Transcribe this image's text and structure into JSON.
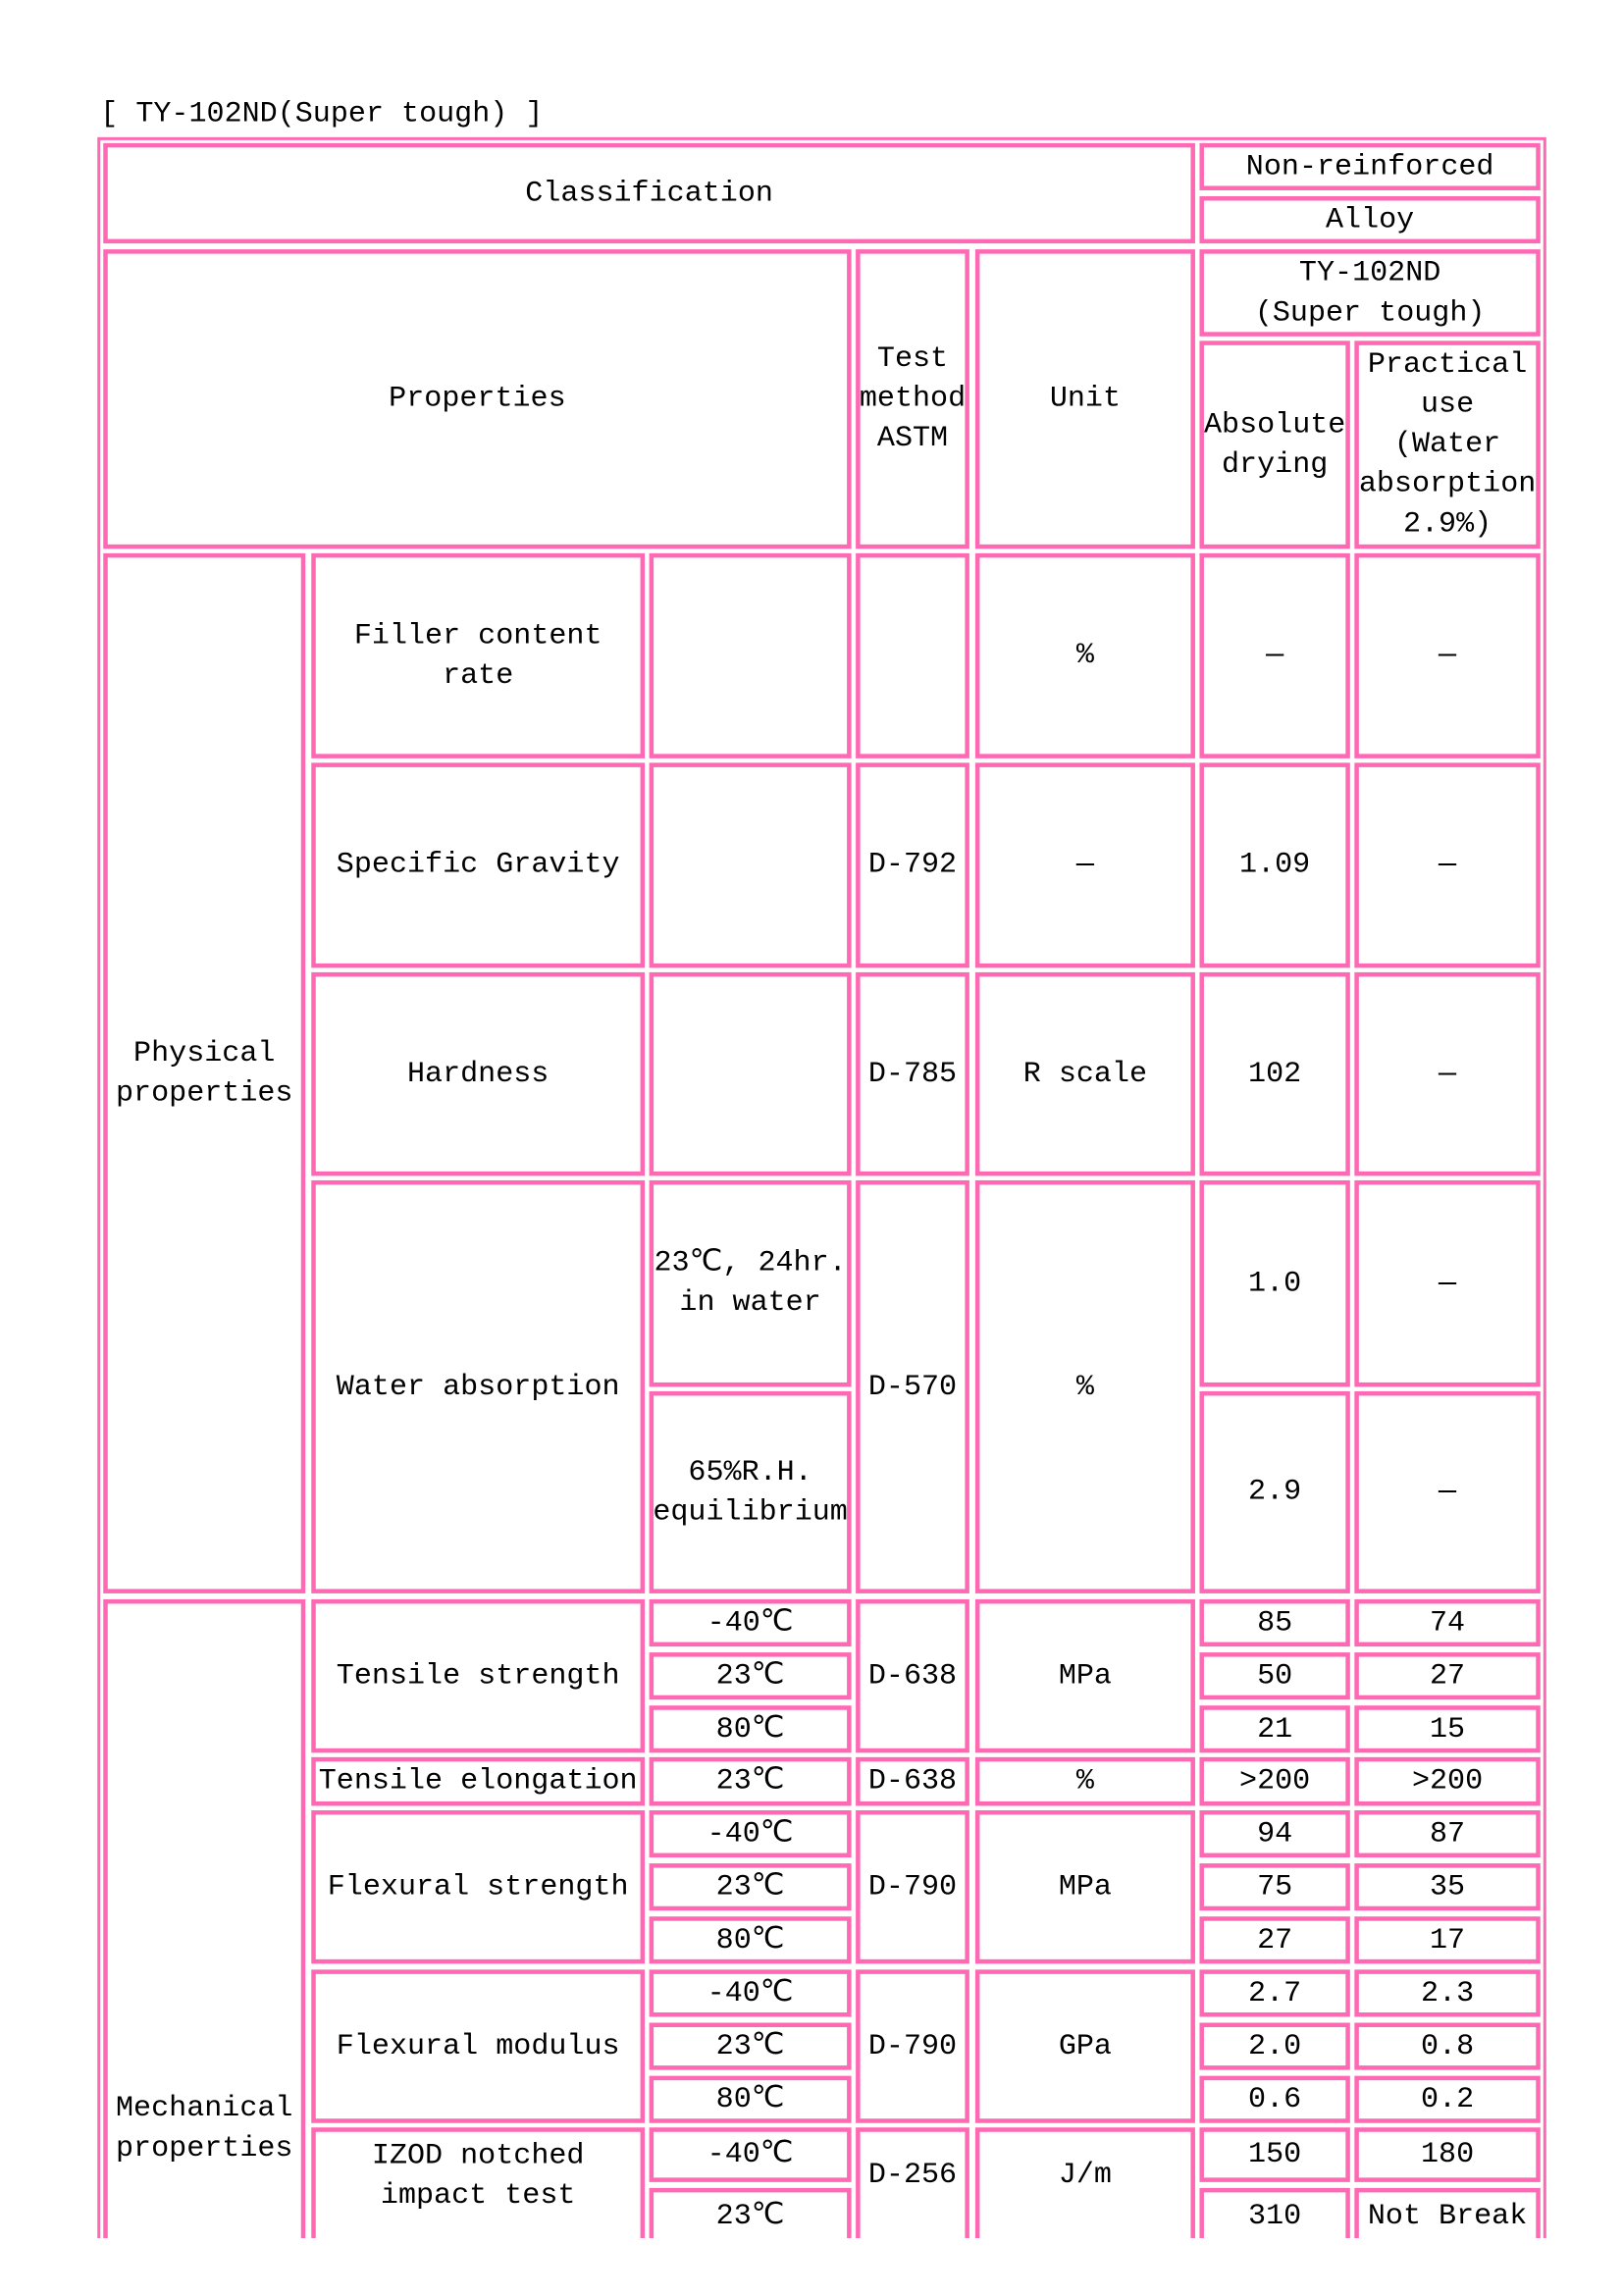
{
  "title": "[ TY-102ND(Super tough) ]",
  "header": {
    "classification": "Classification",
    "non_reinforced": "Non-reinforced",
    "alloy": "Alloy",
    "properties": "Properties",
    "test_method": "Test\nmethod\nASTM",
    "unit": "Unit",
    "grade": "TY-102ND\n(Super tough)",
    "absolute_drying": "Absolute\ndrying",
    "practical_use": "Practical\nuse\n(Water\nabsorption\n2.9%)"
  },
  "physical": {
    "label": "Physical\nproperties",
    "rows": [
      {
        "property": "Filler content\nrate",
        "test": "",
        "unit": "%",
        "abs": "—",
        "prac": "—"
      },
      {
        "property": "Specific Gravity",
        "test": "D-792",
        "unit": "—",
        "abs": "1.09",
        "prac": "—"
      },
      {
        "property": "Hardness",
        "test": "D-785",
        "unit": "R scale",
        "abs": "102",
        "prac": "—"
      },
      {
        "property": "Water absorption",
        "test": "D-570",
        "unit": "%",
        "conditions": [
          {
            "condition": "23℃, 24hr.\nin water",
            "abs": "1.0",
            "prac": "—"
          },
          {
            "condition": "65%R.H.\nequilibrium",
            "abs": "2.9",
            "prac": "—"
          }
        ]
      }
    ]
  },
  "mechanical": {
    "label": "Mechanical\nproperties",
    "rows": [
      {
        "property": "Tensile strength",
        "test": "D-638",
        "unit": "MPa",
        "conditions": [
          {
            "condition": "-40℃",
            "abs": "85",
            "prac": "74"
          },
          {
            "condition": "23℃",
            "abs": "50",
            "prac": "27"
          },
          {
            "condition": "80℃",
            "abs": "21",
            "prac": "15"
          }
        ]
      },
      {
        "property": "Tensile elongation",
        "test": "D-638",
        "unit": "%",
        "conditions": [
          {
            "condition": "23℃",
            "abs": ">200",
            "prac": ">200"
          }
        ]
      },
      {
        "property": "Flexural strength",
        "test": "D-790",
        "unit": "MPa",
        "conditions": [
          {
            "condition": "-40℃",
            "abs": "94",
            "prac": "87"
          },
          {
            "condition": "23℃",
            "abs": "75",
            "prac": "35"
          },
          {
            "condition": "80℃",
            "abs": "27",
            "prac": "17"
          }
        ]
      },
      {
        "property": "Flexural modulus",
        "test": "D-790",
        "unit": "GPa",
        "conditions": [
          {
            "condition": "-40℃",
            "abs": "2.7",
            "prac": "2.3"
          },
          {
            "condition": "23℃",
            "abs": "2.0",
            "prac": "0.8"
          },
          {
            "condition": "80℃",
            "abs": "0.6",
            "prac": "0.2"
          }
        ]
      },
      {
        "property": "IZOD notched\nimpact test",
        "test": "D-256",
        "unit": "J/m",
        "conditions": [
          {
            "condition": "-40℃",
            "abs": "150",
            "prac": "180"
          },
          {
            "condition": "23℃",
            "abs": "310",
            "prac": "Not Break"
          }
        ]
      }
    ]
  },
  "colors": {
    "border": "#ff69b4",
    "text": "#000000"
  }
}
